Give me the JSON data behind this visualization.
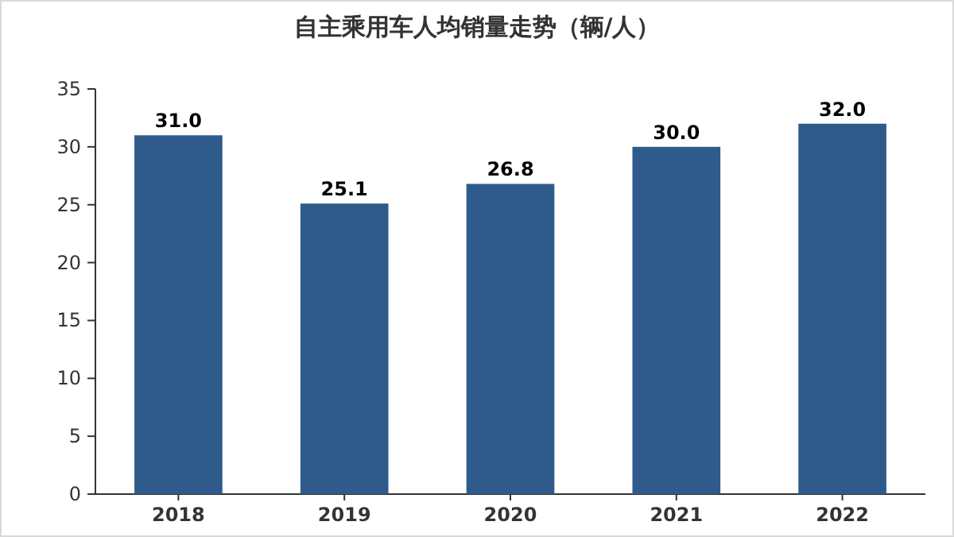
{
  "chart_data": {
    "type": "bar",
    "title": "自主乘用车人均销量走势（辆/人）",
    "categories": [
      "2018",
      "2019",
      "2020",
      "2021",
      "2022"
    ],
    "values": [
      31.0,
      25.1,
      26.8,
      30.0,
      32.0
    ],
    "color": "#2e5b8b",
    "ylim": [
      0,
      35
    ],
    "yticks": [
      0,
      5,
      10,
      15,
      20,
      25,
      30,
      35
    ],
    "value_labels": [
      "31.0",
      "25.1",
      "26.8",
      "30.0",
      "32.0"
    ],
    "grid": false
  }
}
